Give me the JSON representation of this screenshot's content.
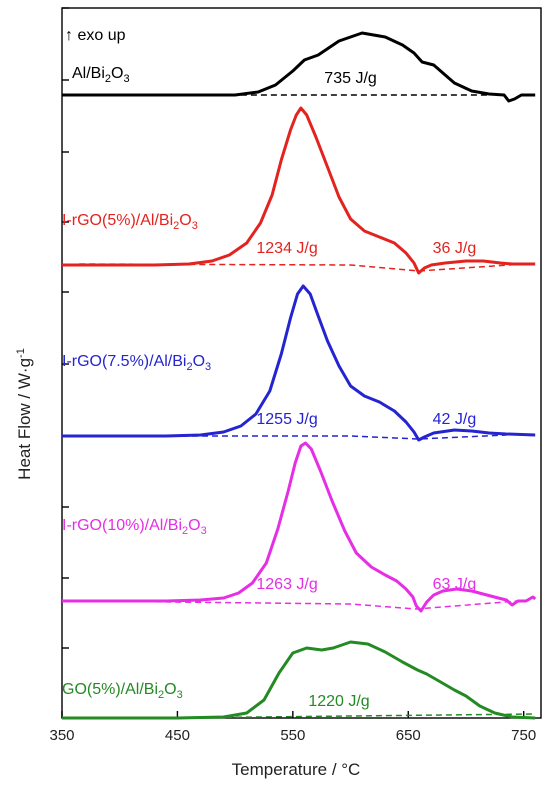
{
  "chart_data": {
    "type": "line",
    "xlabel": "Temperature / °C",
    "ylabel": "Heat Flow / W·g",
    "ylabel_sup": "-1",
    "xlim": [
      350,
      765
    ],
    "xticks": [
      350,
      450,
      550,
      650,
      750
    ],
    "note": "↑ exo up",
    "series": [
      {
        "name_parts": [
          "Al/Bi",
          "2",
          "O",
          "3"
        ],
        "color": "#000000",
        "enthalpy_labels": [
          {
            "text": "735 J/g",
            "x": 600
          }
        ],
        "curve": [
          [
            350,
            0
          ],
          [
            450,
            0
          ],
          [
            500,
            0
          ],
          [
            520,
            3
          ],
          [
            535,
            10
          ],
          [
            550,
            24
          ],
          [
            560,
            35
          ],
          [
            572,
            40
          ],
          [
            590,
            54
          ],
          [
            610,
            62
          ],
          [
            630,
            58
          ],
          [
            645,
            50
          ],
          [
            655,
            42
          ],
          [
            662,
            33
          ],
          [
            672,
            30
          ],
          [
            680,
            22
          ],
          [
            690,
            12
          ],
          [
            705,
            4
          ],
          [
            720,
            1
          ],
          [
            733,
            0
          ],
          [
            737,
            -6
          ],
          [
            742,
            -4
          ],
          [
            748,
            0
          ],
          [
            760,
            0
          ]
        ],
        "baseline": [
          [
            505,
            0
          ],
          [
            720,
            0
          ]
        ]
      },
      {
        "name_parts": [
          "I-rGO(5%)/Al/Bi",
          "2",
          "O",
          "3"
        ],
        "color": "#e3231f",
        "enthalpy_labels": [
          {
            "text": "1234 J/g",
            "x": 545
          },
          {
            "text": "36 J/g",
            "x": 690
          }
        ],
        "curve": [
          [
            350,
            0
          ],
          [
            430,
            0
          ],
          [
            460,
            1
          ],
          [
            480,
            4
          ],
          [
            495,
            10
          ],
          [
            510,
            22
          ],
          [
            522,
            42
          ],
          [
            532,
            70
          ],
          [
            540,
            105
          ],
          [
            548,
            135
          ],
          [
            553,
            150
          ],
          [
            557,
            157
          ],
          [
            562,
            150
          ],
          [
            570,
            128
          ],
          [
            580,
            98
          ],
          [
            590,
            68
          ],
          [
            600,
            46
          ],
          [
            612,
            34
          ],
          [
            625,
            28
          ],
          [
            638,
            22
          ],
          [
            648,
            12
          ],
          [
            655,
            2
          ],
          [
            659,
            -8
          ],
          [
            664,
            -3
          ],
          [
            670,
            0
          ],
          [
            682,
            2
          ],
          [
            700,
            4
          ],
          [
            715,
            4
          ],
          [
            730,
            2
          ],
          [
            740,
            1
          ],
          [
            760,
            1
          ]
        ],
        "baseline": [
          [
            365,
            1
          ],
          [
            600,
            0
          ],
          [
            659,
            -6
          ],
          [
            750,
            1
          ]
        ]
      },
      {
        "name_parts": [
          "I-rGO(7.5%)/Al/Bi",
          "2",
          "O",
          "3"
        ],
        "color": "#2424d1",
        "enthalpy_labels": [
          {
            "text": "1255 J/g",
            "x": 545
          },
          {
            "text": "42 J/g",
            "x": 690
          }
        ],
        "curve": [
          [
            350,
            0
          ],
          [
            440,
            0
          ],
          [
            470,
            1
          ],
          [
            490,
            4
          ],
          [
            505,
            10
          ],
          [
            518,
            22
          ],
          [
            530,
            45
          ],
          [
            540,
            82
          ],
          [
            548,
            118
          ],
          [
            554,
            142
          ],
          [
            559,
            150
          ],
          [
            565,
            142
          ],
          [
            572,
            120
          ],
          [
            580,
            95
          ],
          [
            590,
            70
          ],
          [
            600,
            50
          ],
          [
            612,
            40
          ],
          [
            625,
            34
          ],
          [
            638,
            25
          ],
          [
            648,
            14
          ],
          [
            655,
            4
          ],
          [
            659,
            -4
          ],
          [
            664,
            -1
          ],
          [
            672,
            3
          ],
          [
            690,
            6
          ],
          [
            705,
            5
          ],
          [
            720,
            3
          ],
          [
            735,
            2
          ],
          [
            760,
            1
          ]
        ],
        "baseline": [
          [
            350,
            0
          ],
          [
            600,
            0
          ],
          [
            659,
            -3
          ],
          [
            735,
            1
          ]
        ]
      },
      {
        "name_parts": [
          "I-rGO(10%)/Al/Bi",
          "2",
          "O",
          "3"
        ],
        "color": "#e62ee6",
        "enthalpy_labels": [
          {
            "text": "1263 J/g",
            "x": 545
          },
          {
            "text": "63 J/g",
            "x": 690
          }
        ],
        "curve": [
          [
            350,
            0
          ],
          [
            440,
            0
          ],
          [
            470,
            1
          ],
          [
            490,
            3
          ],
          [
            503,
            8
          ],
          [
            515,
            18
          ],
          [
            527,
            38
          ],
          [
            537,
            72
          ],
          [
            546,
            110
          ],
          [
            552,
            138
          ],
          [
            557,
            155
          ],
          [
            561,
            158
          ],
          [
            566,
            152
          ],
          [
            574,
            130
          ],
          [
            584,
            100
          ],
          [
            595,
            70
          ],
          [
            605,
            48
          ],
          [
            618,
            34
          ],
          [
            630,
            26
          ],
          [
            640,
            20
          ],
          [
            648,
            12
          ],
          [
            654,
            4
          ],
          [
            657,
            -5
          ],
          [
            661,
            -10
          ],
          [
            666,
            -1
          ],
          [
            672,
            6
          ],
          [
            680,
            10
          ],
          [
            692,
            12
          ],
          [
            705,
            10
          ],
          [
            718,
            6
          ],
          [
            728,
            3
          ],
          [
            735,
            1
          ],
          [
            740,
            -4
          ],
          [
            745,
            0
          ],
          [
            752,
            0
          ],
          [
            758,
            4
          ],
          [
            760,
            2
          ]
        ],
        "baseline": [
          [
            370,
            0
          ],
          [
            600,
            -3
          ],
          [
            657,
            -8
          ],
          [
            745,
            0
          ]
        ]
      },
      {
        "name_parts": [
          "GO(5%)/Al/Bi",
          "2",
          "O",
          "3"
        ],
        "color": "#248a24",
        "enthalpy_labels": [
          {
            "text": "1220 J/g",
            "x": 590
          }
        ],
        "curve": [
          [
            350,
            0
          ],
          [
            450,
            0
          ],
          [
            490,
            1
          ],
          [
            510,
            5
          ],
          [
            525,
            18
          ],
          [
            538,
            45
          ],
          [
            550,
            65
          ],
          [
            562,
            70
          ],
          [
            575,
            68
          ],
          [
            585,
            70
          ],
          [
            600,
            76
          ],
          [
            615,
            74
          ],
          [
            630,
            66
          ],
          [
            645,
            56
          ],
          [
            658,
            48
          ],
          [
            666,
            44
          ],
          [
            678,
            36
          ],
          [
            690,
            28
          ],
          [
            700,
            22
          ],
          [
            712,
            12
          ],
          [
            725,
            5
          ],
          [
            740,
            1
          ],
          [
            760,
            0
          ]
        ],
        "baseline": [
          [
            440,
            0
          ],
          [
            760,
            4
          ]
        ]
      }
    ]
  }
}
